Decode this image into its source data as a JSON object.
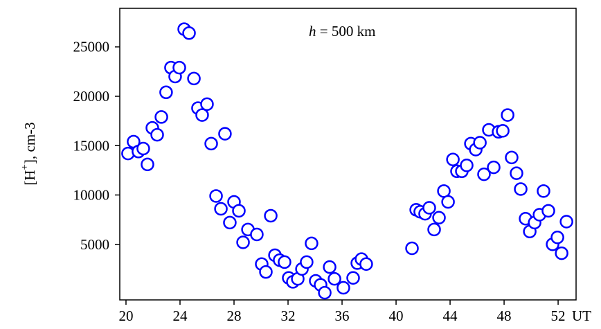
{
  "chart_data": {
    "type": "scatter",
    "annotation": [
      "h",
      " = 500 km"
    ],
    "ylabel": [
      "[H",
      "+",
      "], cm-3"
    ],
    "xunit": "UT",
    "color": "#0000ff",
    "xlim": [
      19.54,
      53.33
    ],
    "ylim": [
      -630,
      28912
    ],
    "xticks": [
      20,
      24,
      28,
      32,
      36,
      40,
      44,
      48,
      52
    ],
    "yticks": [
      5000,
      10000,
      15000,
      20000,
      25000
    ],
    "x": [
      20.15,
      20.56,
      20.92,
      21.28,
      21.59,
      21.95,
      22.31,
      22.62,
      22.97,
      23.33,
      23.64,
      23.95,
      24.31,
      24.67,
      25.03,
      25.33,
      25.64,
      26.0,
      26.31,
      26.67,
      27.03,
      27.33,
      27.69,
      28.0,
      28.36,
      28.67,
      29.03,
      29.69,
      30.05,
      30.36,
      30.72,
      31.03,
      31.38,
      31.74,
      32.05,
      32.36,
      32.72,
      33.03,
      33.38,
      33.74,
      34.05,
      34.41,
      34.72,
      35.08,
      35.44,
      36.1,
      36.82,
      37.13,
      37.44,
      37.79,
      41.18,
      41.49,
      41.79,
      42.15,
      42.46,
      42.82,
      43.18,
      43.54,
      43.85,
      44.21,
      44.51,
      44.87,
      45.23,
      45.54,
      45.9,
      46.21,
      46.51,
      46.87,
      47.23,
      47.59,
      47.9,
      48.26,
      48.56,
      48.92,
      49.23,
      49.59,
      49.9,
      50.26,
      50.62,
      50.92,
      51.28,
      51.59,
      51.95,
      52.26,
      52.62
    ],
    "values": [
      14200,
      15400,
      14400,
      14700,
      13100,
      16800,
      16100,
      17900,
      20400,
      22900,
      22000,
      22900,
      26800,
      26400,
      21800,
      18800,
      18100,
      19200,
      15200,
      9900,
      8600,
      16200,
      7200,
      9300,
      8400,
      5200,
      6500,
      6000,
      3000,
      2200,
      7900,
      3900,
      3400,
      3200,
      1600,
      1200,
      1500,
      2500,
      3200,
      5100,
      1300,
      900,
      100,
      2700,
      1500,
      600,
      1600,
      3100,
      3500,
      3000,
      4600,
      8500,
      8300,
      8100,
      8700,
      6500,
      7700,
      10400,
      9300,
      13600,
      12400,
      12400,
      13000,
      15200,
      14600,
      15300,
      12100,
      16600,
      12800,
      16400,
      16500,
      18100,
      13800,
      12200,
      10600,
      7600,
      6300,
      7200,
      8000,
      10400,
      8400,
      5000,
      5700,
      4100,
      7300
    ]
  }
}
